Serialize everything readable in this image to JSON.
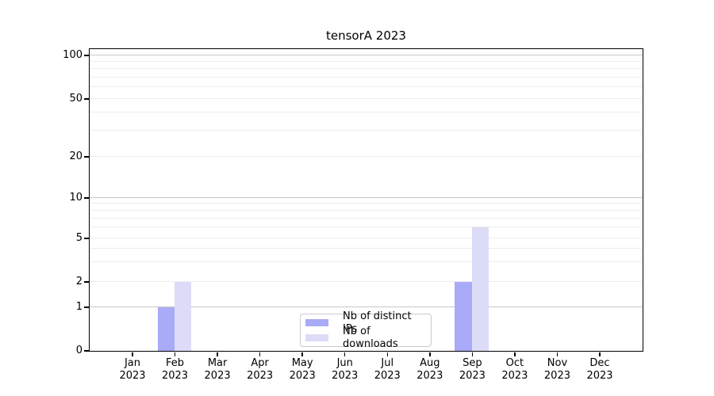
{
  "title": "tensorA 2023",
  "chart_data": {
    "type": "bar",
    "title": "tensorA 2023",
    "categories": [
      "Jan",
      "Feb",
      "Mar",
      "Apr",
      "May",
      "Jun",
      "Jul",
      "Aug",
      "Sep",
      "Oct",
      "Nov",
      "Dec"
    ],
    "year": "2023",
    "series": [
      {
        "name": "Nb of distinct IPs",
        "color": "#a9aaf8",
        "values": [
          0,
          1,
          0,
          0,
          0,
          0,
          0,
          0,
          2,
          0,
          0,
          0
        ]
      },
      {
        "name": "Nb of downloads",
        "color": "#dcdcf8",
        "values": [
          0,
          2,
          0,
          0,
          0,
          0,
          0,
          0,
          6,
          0,
          0,
          0
        ]
      }
    ],
    "y_ticks": [
      0,
      1,
      2,
      5,
      10,
      20,
      50,
      100
    ],
    "y_scale": "log-like (symlog)",
    "ylim": [
      0,
      100
    ],
    "xlabel": "",
    "ylabel": "",
    "grid": "horizontal log gridlines, majors at 1/10/100",
    "legend_position": "lower center"
  },
  "colors": {
    "background": "#ffffff",
    "spine": "#000000",
    "major_grid": "#c8c8c8",
    "minor_grid": "#ededed",
    "bar_distinct_ips": "#a9aaf8",
    "bar_downloads": "#dcdcf8"
  }
}
